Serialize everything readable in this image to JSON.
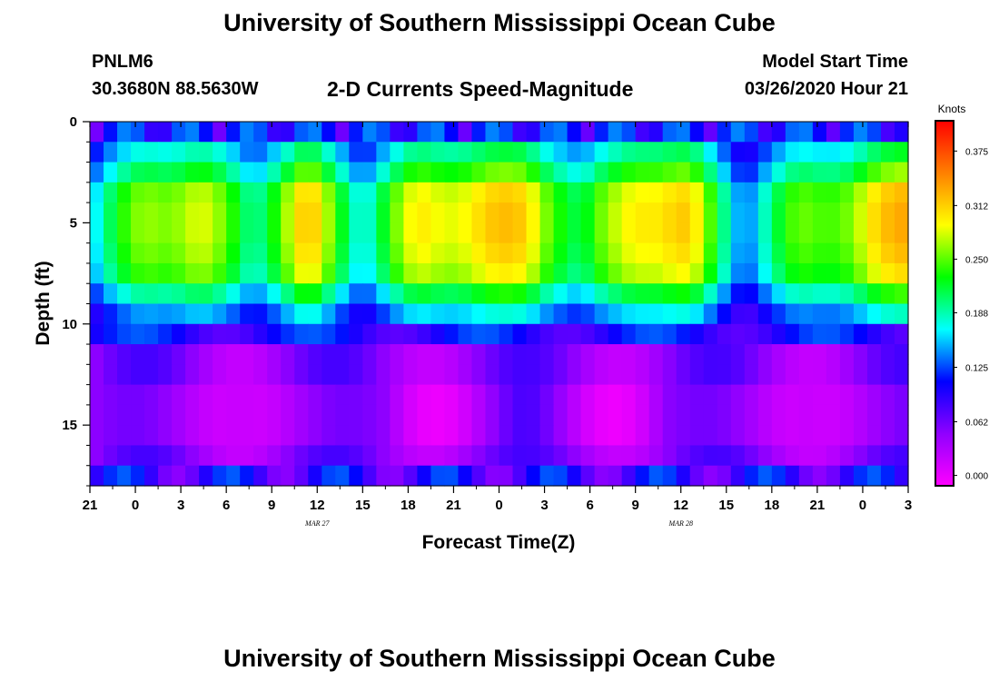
{
  "page": {
    "title_top": "University of Southern Mississippi Ocean Cube",
    "title_bottom": "University of Southern Mississippi Ocean Cube",
    "station_id": "PNLM6",
    "station_coords": "30.3680N 88.5630W",
    "subtitle": "2-D Currents Speed-Magnitude",
    "model_start_label": "Model Start Time",
    "model_start_value": "03/26/2020 Hour 21"
  },
  "chart_data": {
    "type": "heatmap",
    "title": "2-D Currents Speed-Magnitude",
    "xlabel": "Forecast Time(Z)",
    "ylabel": "Depth (ft)",
    "x_tick_labels": [
      "21",
      "0",
      "3",
      "6",
      "9",
      "12",
      "15",
      "18",
      "21",
      "0",
      "3",
      "6",
      "9",
      "12",
      "15",
      "18",
      "21",
      "0",
      "3"
    ],
    "x_date_labels": [
      "MAR 27",
      "MAR 28"
    ],
    "x_range_hours": [
      0,
      54
    ],
    "y_ticks": [
      0,
      5,
      10,
      15
    ],
    "y_range": [
      0,
      18
    ],
    "y_inverted": true,
    "colorbar": {
      "label": "Knots",
      "ticks": [
        "0.000",
        "0.062",
        "0.125",
        "0.188",
        "0.250",
        "0.312",
        "0.375"
      ],
      "range": [
        -0.012,
        0.41
      ],
      "colors": [
        "#ff00ff",
        "#9000ff",
        "#0000ff",
        "#00ffff",
        "#00ff00",
        "#ffff00",
        "#ff8000",
        "#ff0000"
      ]
    },
    "time_hours": [
      0,
      3,
      6,
      9,
      12,
      15,
      18,
      21,
      24,
      27,
      30,
      33,
      36,
      39,
      42,
      45,
      48,
      51,
      54
    ],
    "depth_levels_ft": [
      0,
      1,
      2,
      3,
      4,
      5,
      6,
      7,
      8,
      9,
      10,
      11,
      12,
      13,
      14,
      15,
      16,
      17,
      18
    ],
    "upper_layer_speed_profile_knots": [
      0.14,
      0.24,
      0.25,
      0.18,
      0.28,
      0.16,
      0.26,
      0.27,
      0.28,
      0.18,
      0.28,
      0.27,
      0.13,
      0.22,
      0.24,
      0.3
    ],
    "lower_layer_speed_knots_approx": 0.05,
    "grid": false,
    "legend": "right"
  }
}
